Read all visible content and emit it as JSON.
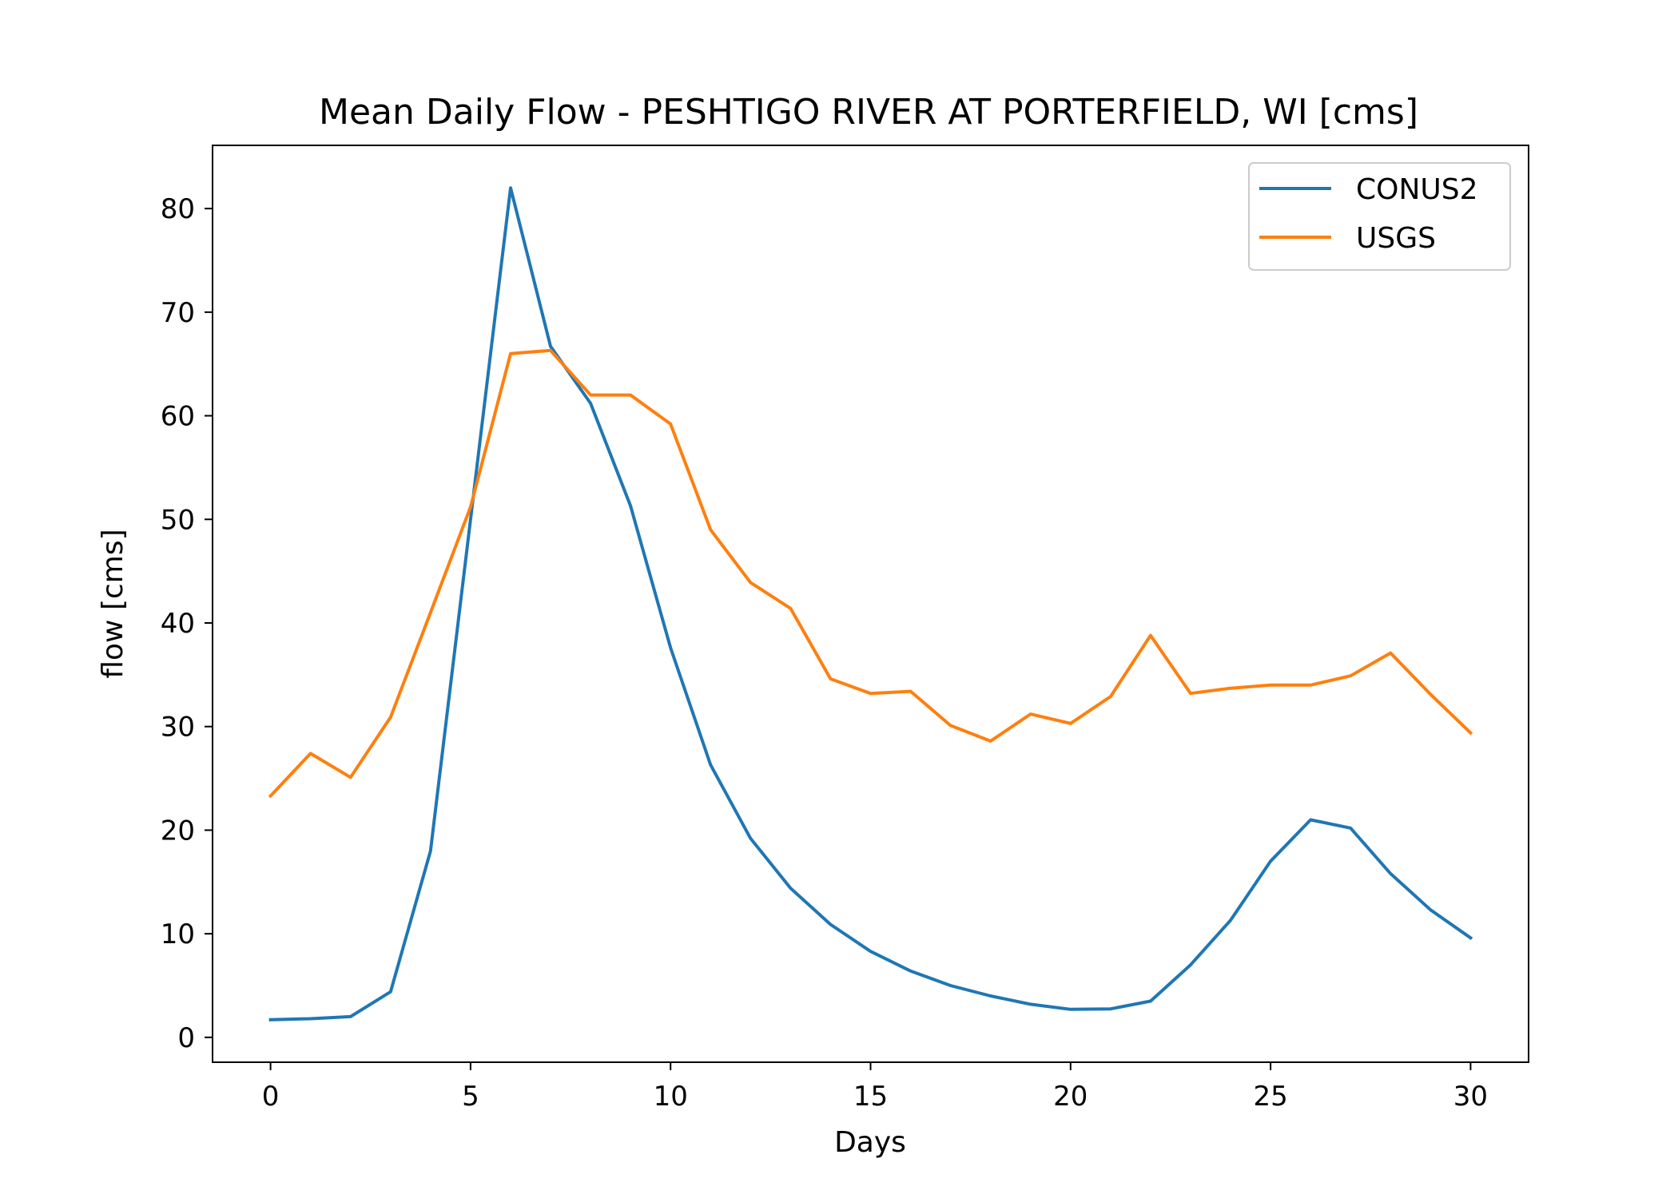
{
  "chart_data": {
    "type": "line",
    "title": "Mean Daily Flow - PESHTIGO RIVER AT PORTERFIELD, WI [cms]",
    "xlabel": "Days",
    "ylabel": "flow [cms]",
    "xlim": [
      -1.45,
      31.45
    ],
    "ylim": [
      -2.4,
      86.1
    ],
    "xticks": [
      0,
      5,
      10,
      15,
      20,
      25,
      30
    ],
    "yticks": [
      0,
      10,
      20,
      30,
      40,
      50,
      60,
      70,
      80
    ],
    "grid": false,
    "legend_position": "top-right",
    "x": [
      0,
      1,
      2,
      3,
      4,
      5,
      6,
      7,
      8,
      9,
      10,
      11,
      12,
      13,
      14,
      15,
      16,
      17,
      18,
      19,
      20,
      21,
      22,
      23,
      24,
      25,
      26,
      27,
      28,
      29,
      30
    ],
    "series": [
      {
        "name": "CONUS2",
        "color": "#1f77b4",
        "values": [
          1.7,
          1.8,
          2.0,
          4.4,
          18.0,
          50.0,
          82.0,
          66.7,
          61.2,
          51.3,
          37.6,
          26.3,
          19.2,
          14.4,
          10.9,
          8.3,
          6.4,
          5.0,
          4.0,
          3.2,
          2.7,
          2.75,
          3.5,
          7.0,
          11.3,
          17.0,
          21.0,
          20.2,
          15.8,
          12.3,
          9.6
        ]
      },
      {
        "name": "USGS",
        "color": "#ff7f0e",
        "values": [
          23.3,
          27.4,
          25.1,
          30.9,
          41.0,
          51.2,
          66.0,
          66.3,
          62.0,
          62.0,
          59.2,
          49.0,
          43.9,
          41.4,
          34.6,
          33.2,
          33.4,
          30.1,
          28.6,
          31.2,
          30.3,
          32.9,
          38.8,
          33.2,
          33.7,
          34.0,
          34.0,
          34.9,
          37.1,
          33.1,
          29.4
        ]
      }
    ]
  }
}
